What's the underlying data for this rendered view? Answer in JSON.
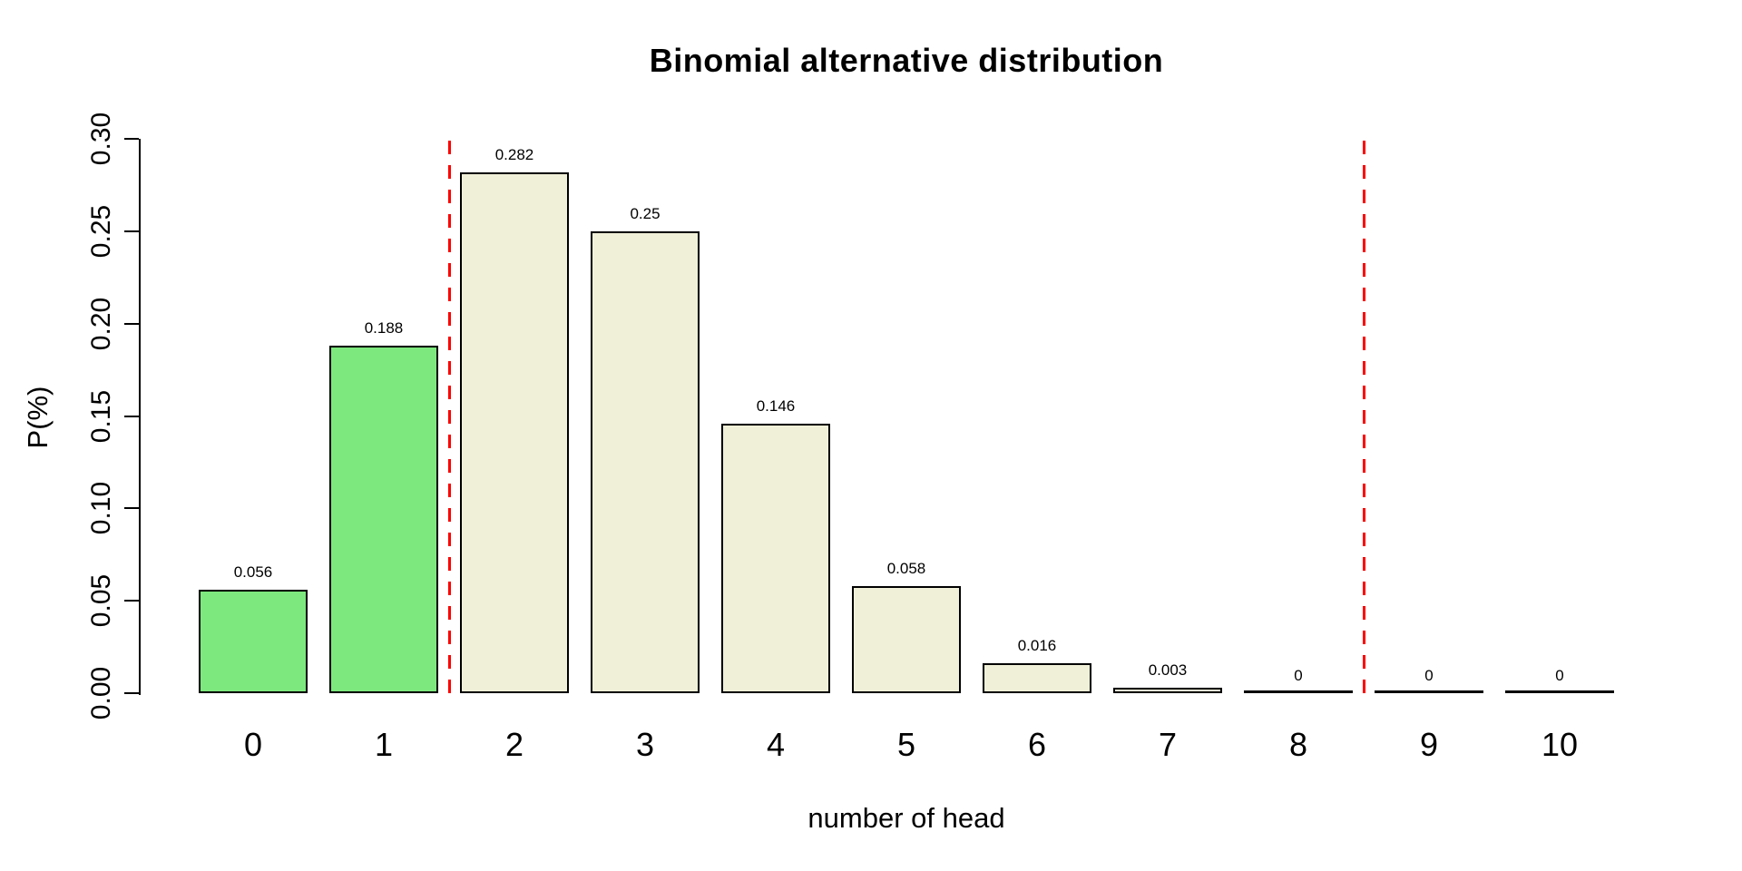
{
  "chart_data": {
    "type": "bar",
    "title": "Binomial alternative distribution",
    "xlabel": "number of head",
    "ylabel": "P(%)",
    "categories": [
      "0",
      "1",
      "2",
      "3",
      "4",
      "5",
      "6",
      "7",
      "8",
      "9",
      "10"
    ],
    "values": [
      0.056,
      0.188,
      0.282,
      0.25,
      0.146,
      0.058,
      0.016,
      0.003,
      0,
      0,
      0
    ],
    "bar_value_labels": [
      "0.056",
      "0.188",
      "0.282",
      "0.25",
      "0.146",
      "0.058",
      "0.016",
      "0.003",
      "0",
      "0",
      "0"
    ],
    "highlighted_indices": [
      0,
      1
    ],
    "highlight_color": "#7DE87D",
    "bar_color": "#F0F0D8",
    "bar_border_color": "#000000",
    "y_tick_labels": [
      "0.00",
      "0.05",
      "0.10",
      "0.15",
      "0.20",
      "0.25",
      "0.30"
    ],
    "y_tick_values": [
      0,
      0.05,
      0.1,
      0.15,
      0.2,
      0.25,
      0.3
    ],
    "ylim": [
      0,
      0.3
    ],
    "vlines": {
      "positions": [
        1.5,
        8.5
      ],
      "color": "#FF0000",
      "style": "dashed"
    },
    "grid": false,
    "legend": null
  }
}
